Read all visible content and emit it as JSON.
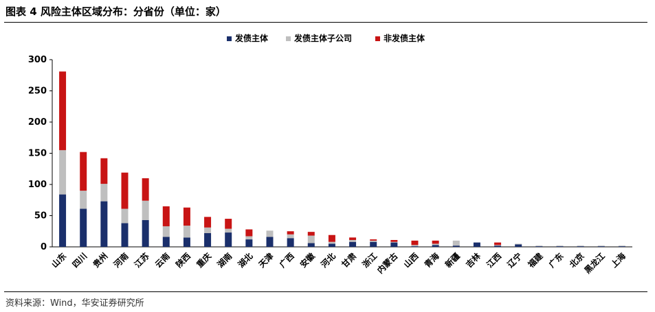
{
  "title": "图表 4  风险主体区域分布：分省份（单位：家）",
  "source": "资料来源：Wind，华安证券研究所",
  "colors": {
    "bond": "#1a2f6b",
    "bond_subsidiary": "#bfbfbf",
    "non_bond": "#c81414",
    "axis": "#000000"
  },
  "chart_data": {
    "type": "bar",
    "stacked": true,
    "title": "风险主体区域分布：分省份（单位：家）",
    "xlabel": "",
    "ylabel": "",
    "ylim": [
      0,
      300
    ],
    "yticks": [
      0,
      50,
      100,
      150,
      200,
      250,
      300
    ],
    "grid": false,
    "legend_position": "top-center",
    "categories": [
      "山东",
      "四川",
      "贵州",
      "河南",
      "江苏",
      "云南",
      "陕西",
      "重庆",
      "湖南",
      "湖北",
      "天津",
      "广西",
      "安徽",
      "河北",
      "甘肃",
      "浙江",
      "内蒙古",
      "山西",
      "青海",
      "新疆",
      "吉林",
      "江西",
      "辽宁",
      "福建",
      "广东",
      "北京",
      "黑龙江",
      "上海"
    ],
    "series": [
      {
        "name": "发债主体",
        "color": "#1a2f6b",
        "values": [
          84,
          61,
          73,
          38,
          43,
          16,
          15,
          22,
          23,
          12,
          16,
          14,
          6,
          5,
          8,
          8,
          7,
          1,
          3,
          2,
          7,
          2,
          4,
          1,
          1,
          1,
          1,
          1
        ]
      },
      {
        "name": "发债主体子公司",
        "color": "#bfbfbf",
        "values": [
          71,
          29,
          28,
          23,
          31,
          17,
          19,
          9,
          6,
          5,
          10,
          6,
          12,
          3,
          3,
          2,
          1,
          2,
          2,
          8,
          0,
          1,
          1,
          1,
          1,
          1,
          1,
          1
        ]
      },
      {
        "name": "非发债主体",
        "color": "#c81414",
        "values": [
          126,
          62,
          41,
          58,
          36,
          32,
          29,
          17,
          16,
          11,
          0,
          5,
          6,
          11,
          4,
          2,
          3,
          7,
          5,
          0,
          0,
          4,
          0,
          0,
          0,
          0,
          0,
          0
        ]
      }
    ]
  }
}
